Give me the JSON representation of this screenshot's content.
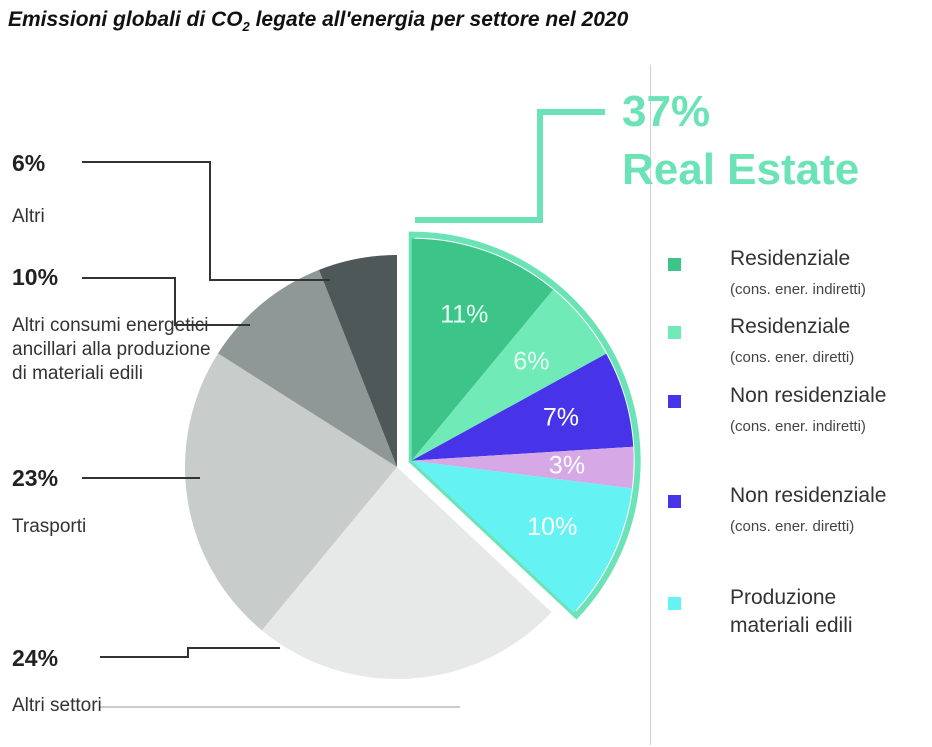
{
  "title_main": "Emissioni globali di CO",
  "title_sub": "2",
  "title_rest": " legate all'energia per settore nel 2020",
  "real_estate": {
    "percent": "37%",
    "label": "Real Estate"
  },
  "colors": {
    "altri": "#4f5858",
    "ancillari": "#8f9896",
    "trasporti": "#c8cdcb",
    "altri_settori": "#e6e9e7",
    "res_indiretti": "#3dc489",
    "res_diretti": "#70ebb8",
    "nonres_indiretti": "#4733e8",
    "nonres_diretti_pie": "#d7a8e6",
    "nonres_diretti_legend": "#4733e8",
    "produzione": "#64f2f2",
    "real_estate": "#6be3b7"
  },
  "callouts": [
    {
      "value": "6%",
      "label": "Altri"
    },
    {
      "value": "10%",
      "label": "Altri consumi energetici ancillari alla produzione di materiali edili"
    },
    {
      "value": "23%",
      "label": "Trasporti"
    },
    {
      "value": "24%",
      "label": "Altri settori"
    }
  ],
  "legend": [
    {
      "name": "Residenziale",
      "sub": "(cons. ener. indiretti)"
    },
    {
      "name": "Residenziale",
      "sub": "(cons. ener. diretti)"
    },
    {
      "name": "Non residenziale",
      "sub": "(cons. ener. indiretti)"
    },
    {
      "name": "Non residenziale",
      "sub": "(cons. ener. diretti)"
    },
    {
      "name": "Produzione",
      "sub": "materiali edili"
    }
  ],
  "chart_data": {
    "type": "pie",
    "title": "Emissioni globali di CO2 legate all'energia per settore nel 2020",
    "slices": [
      {
        "label": "Residenziale (cons. ener. indiretti)",
        "value": 11,
        "display": "11%",
        "group": "Real Estate"
      },
      {
        "label": "Residenziale (cons. ener. diretti)",
        "value": 6,
        "display": "6%",
        "group": "Real Estate"
      },
      {
        "label": "Non residenziale (cons. ener. indiretti)",
        "value": 7,
        "display": "7%",
        "group": "Real Estate"
      },
      {
        "label": "Non residenziale (cons. ener. diretti)",
        "value": 3,
        "display": "3%",
        "group": "Real Estate"
      },
      {
        "label": "Produzione materiali edili",
        "value": 10,
        "display": "10%",
        "group": "Real Estate"
      },
      {
        "label": "Altri settori",
        "value": 24,
        "display": "24%"
      },
      {
        "label": "Trasporti",
        "value": 23,
        "display": "23%"
      },
      {
        "label": "Altri consumi energetici ancillari alla produzione di materiali edili",
        "value": 10,
        "display": "10%"
      },
      {
        "label": "Altri",
        "value": 6,
        "display": "6%"
      }
    ],
    "exploded_group": "Real Estate",
    "exploded_total": "37%",
    "legend_position": "right"
  }
}
